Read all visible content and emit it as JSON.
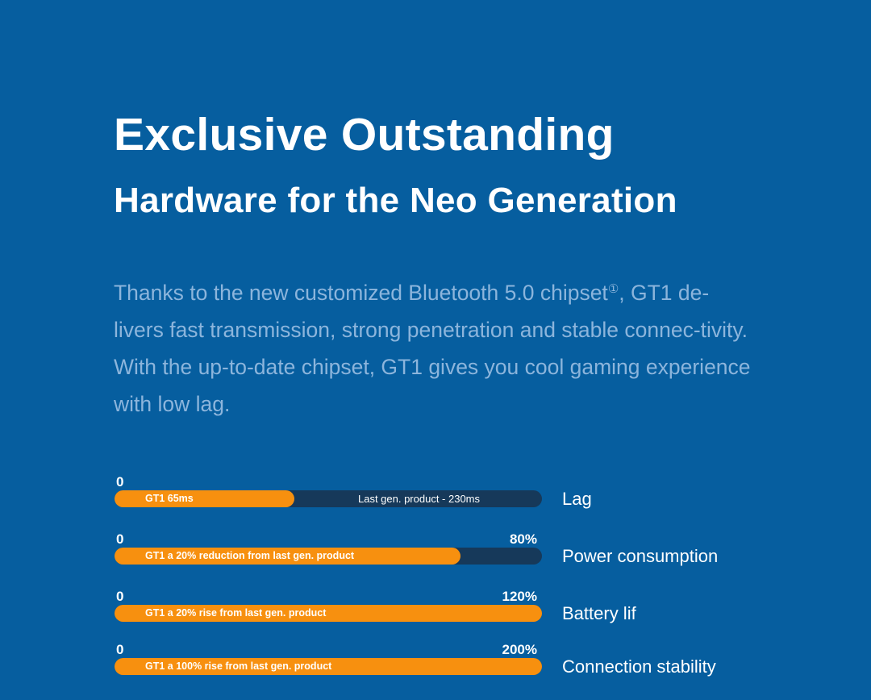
{
  "heading": {
    "line1": "Exclusive Outstanding",
    "line2": "Hardware for the Neo Generation"
  },
  "paragraph": {
    "before": "Thanks to the new customized Bluetooth 5.0 chipset",
    "footnote": "①",
    "after": ", GT1 de-livers fast transmission, strong penetration and stable connec-tivity. With the up-to-date chipset, GT1 gives you cool gaming experience with low lag."
  },
  "colors": {
    "background": "#065e9f",
    "accent": "#f7900f",
    "track": "#16395a",
    "paragraph": "#8cb5dc"
  },
  "bars": [
    {
      "zero": "0",
      "max": "",
      "fill_label": "GT1 65ms",
      "track_label": "Last gen. product - 230ms",
      "label": "Lag",
      "fill_percent": 42
    },
    {
      "zero": "0",
      "max": "80%",
      "fill_label": "GT1 a 20% reduction from last gen. product",
      "track_label": "",
      "label": "Power consumption",
      "fill_percent": 81
    },
    {
      "zero": "0",
      "max": "120%",
      "fill_label": "GT1 a 20% rise from last gen. product",
      "track_label": "",
      "label": "Battery lif",
      "fill_percent": 100
    },
    {
      "zero": "0",
      "max": "200%",
      "fill_label": "GT1 a 100% rise from last gen. product",
      "track_label": "",
      "label": "Connection stability",
      "fill_percent": 100
    }
  ]
}
